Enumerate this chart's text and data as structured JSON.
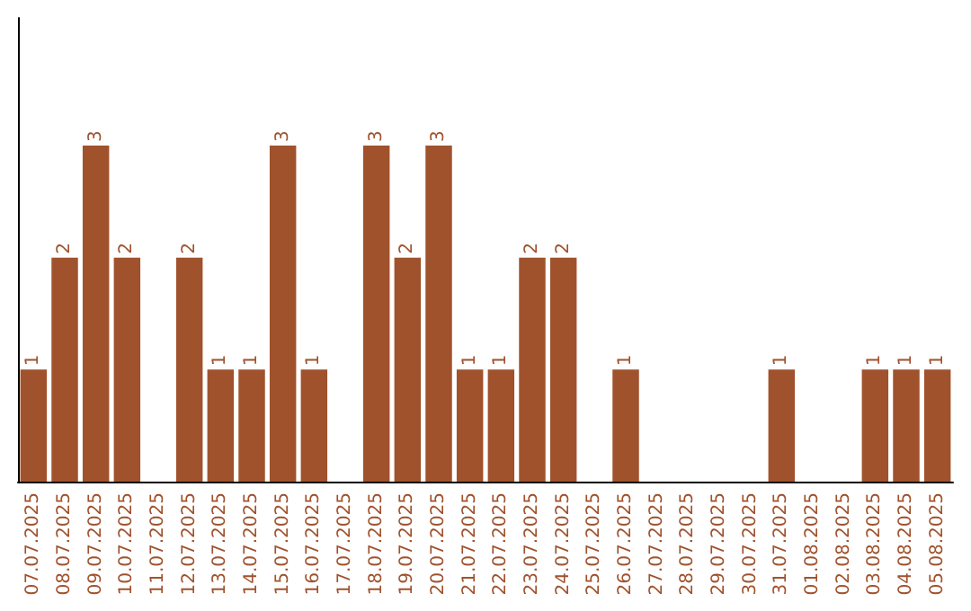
{
  "chart_data": {
    "type": "bar",
    "categories": [
      "07.07.2025",
      "08.07.2025",
      "09.07.2025",
      "10.07.2025",
      "11.07.2025",
      "12.07.2025",
      "13.07.2025",
      "14.07.2025",
      "15.07.2025",
      "16.07.2025",
      "17.07.2025",
      "18.07.2025",
      "19.07.2025",
      "20.07.2025",
      "21.07.2025",
      "22.07.2025",
      "23.07.2025",
      "24.07.2025",
      "25.07.2025",
      "26.07.2025",
      "27.07.2025",
      "28.07.2025",
      "29.07.2025",
      "30.07.2025",
      "31.07.2025",
      "01.08.2025",
      "02.08.2025",
      "03.08.2025",
      "04.08.2025",
      "05.08.2025"
    ],
    "values": [
      1,
      2,
      3,
      2,
      0,
      2,
      1,
      1,
      3,
      1,
      0,
      3,
      2,
      3,
      1,
      1,
      2,
      2,
      0,
      1,
      0,
      0,
      0,
      0,
      1,
      0,
      0,
      1,
      1,
      1
    ],
    "value_labels": [
      "1",
      "2",
      "3",
      "2",
      null,
      "2",
      "1",
      "1",
      "3",
      "1",
      null,
      "3",
      "2",
      "3",
      "1",
      "1",
      "2",
      "2",
      null,
      "1",
      null,
      null,
      null,
      null,
      "1",
      null,
      null,
      "1",
      "1",
      "1"
    ],
    "color": "#a0522d",
    "tick_labels": "x"
  }
}
